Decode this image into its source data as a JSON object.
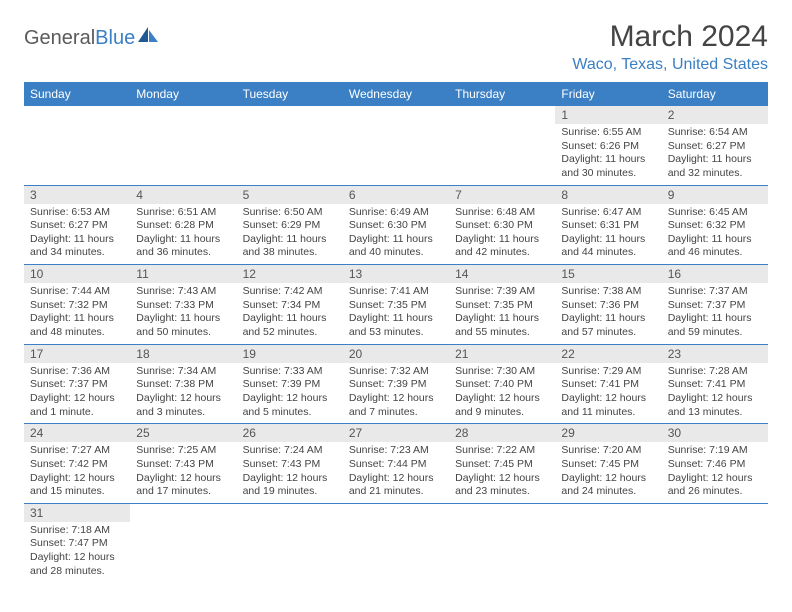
{
  "logo": {
    "text_a": "General",
    "text_b": "Blue"
  },
  "title": "March 2024",
  "location": "Waco, Texas, United States",
  "colors": {
    "header_bg": "#3b7fc4",
    "header_fg": "#ffffff",
    "daynum_bg": "#e9e9e9",
    "text": "#444444",
    "rule": "#3b7fc4"
  },
  "day_headers": [
    "Sunday",
    "Monday",
    "Tuesday",
    "Wednesday",
    "Thursday",
    "Friday",
    "Saturday"
  ],
  "weeks": [
    [
      {
        "n": "",
        "sr": "",
        "ss": "",
        "dl": ""
      },
      {
        "n": "",
        "sr": "",
        "ss": "",
        "dl": ""
      },
      {
        "n": "",
        "sr": "",
        "ss": "",
        "dl": ""
      },
      {
        "n": "",
        "sr": "",
        "ss": "",
        "dl": ""
      },
      {
        "n": "",
        "sr": "",
        "ss": "",
        "dl": ""
      },
      {
        "n": "1",
        "sr": "Sunrise: 6:55 AM",
        "ss": "Sunset: 6:26 PM",
        "dl": "Daylight: 11 hours and 30 minutes."
      },
      {
        "n": "2",
        "sr": "Sunrise: 6:54 AM",
        "ss": "Sunset: 6:27 PM",
        "dl": "Daylight: 11 hours and 32 minutes."
      }
    ],
    [
      {
        "n": "3",
        "sr": "Sunrise: 6:53 AM",
        "ss": "Sunset: 6:27 PM",
        "dl": "Daylight: 11 hours and 34 minutes."
      },
      {
        "n": "4",
        "sr": "Sunrise: 6:51 AM",
        "ss": "Sunset: 6:28 PM",
        "dl": "Daylight: 11 hours and 36 minutes."
      },
      {
        "n": "5",
        "sr": "Sunrise: 6:50 AM",
        "ss": "Sunset: 6:29 PM",
        "dl": "Daylight: 11 hours and 38 minutes."
      },
      {
        "n": "6",
        "sr": "Sunrise: 6:49 AM",
        "ss": "Sunset: 6:30 PM",
        "dl": "Daylight: 11 hours and 40 minutes."
      },
      {
        "n": "7",
        "sr": "Sunrise: 6:48 AM",
        "ss": "Sunset: 6:30 PM",
        "dl": "Daylight: 11 hours and 42 minutes."
      },
      {
        "n": "8",
        "sr": "Sunrise: 6:47 AM",
        "ss": "Sunset: 6:31 PM",
        "dl": "Daylight: 11 hours and 44 minutes."
      },
      {
        "n": "9",
        "sr": "Sunrise: 6:45 AM",
        "ss": "Sunset: 6:32 PM",
        "dl": "Daylight: 11 hours and 46 minutes."
      }
    ],
    [
      {
        "n": "10",
        "sr": "Sunrise: 7:44 AM",
        "ss": "Sunset: 7:32 PM",
        "dl": "Daylight: 11 hours and 48 minutes."
      },
      {
        "n": "11",
        "sr": "Sunrise: 7:43 AM",
        "ss": "Sunset: 7:33 PM",
        "dl": "Daylight: 11 hours and 50 minutes."
      },
      {
        "n": "12",
        "sr": "Sunrise: 7:42 AM",
        "ss": "Sunset: 7:34 PM",
        "dl": "Daylight: 11 hours and 52 minutes."
      },
      {
        "n": "13",
        "sr": "Sunrise: 7:41 AM",
        "ss": "Sunset: 7:35 PM",
        "dl": "Daylight: 11 hours and 53 minutes."
      },
      {
        "n": "14",
        "sr": "Sunrise: 7:39 AM",
        "ss": "Sunset: 7:35 PM",
        "dl": "Daylight: 11 hours and 55 minutes."
      },
      {
        "n": "15",
        "sr": "Sunrise: 7:38 AM",
        "ss": "Sunset: 7:36 PM",
        "dl": "Daylight: 11 hours and 57 minutes."
      },
      {
        "n": "16",
        "sr": "Sunrise: 7:37 AM",
        "ss": "Sunset: 7:37 PM",
        "dl": "Daylight: 11 hours and 59 minutes."
      }
    ],
    [
      {
        "n": "17",
        "sr": "Sunrise: 7:36 AM",
        "ss": "Sunset: 7:37 PM",
        "dl": "Daylight: 12 hours and 1 minute."
      },
      {
        "n": "18",
        "sr": "Sunrise: 7:34 AM",
        "ss": "Sunset: 7:38 PM",
        "dl": "Daylight: 12 hours and 3 minutes."
      },
      {
        "n": "19",
        "sr": "Sunrise: 7:33 AM",
        "ss": "Sunset: 7:39 PM",
        "dl": "Daylight: 12 hours and 5 minutes."
      },
      {
        "n": "20",
        "sr": "Sunrise: 7:32 AM",
        "ss": "Sunset: 7:39 PM",
        "dl": "Daylight: 12 hours and 7 minutes."
      },
      {
        "n": "21",
        "sr": "Sunrise: 7:30 AM",
        "ss": "Sunset: 7:40 PM",
        "dl": "Daylight: 12 hours and 9 minutes."
      },
      {
        "n": "22",
        "sr": "Sunrise: 7:29 AM",
        "ss": "Sunset: 7:41 PM",
        "dl": "Daylight: 12 hours and 11 minutes."
      },
      {
        "n": "23",
        "sr": "Sunrise: 7:28 AM",
        "ss": "Sunset: 7:41 PM",
        "dl": "Daylight: 12 hours and 13 minutes."
      }
    ],
    [
      {
        "n": "24",
        "sr": "Sunrise: 7:27 AM",
        "ss": "Sunset: 7:42 PM",
        "dl": "Daylight: 12 hours and 15 minutes."
      },
      {
        "n": "25",
        "sr": "Sunrise: 7:25 AM",
        "ss": "Sunset: 7:43 PM",
        "dl": "Daylight: 12 hours and 17 minutes."
      },
      {
        "n": "26",
        "sr": "Sunrise: 7:24 AM",
        "ss": "Sunset: 7:43 PM",
        "dl": "Daylight: 12 hours and 19 minutes."
      },
      {
        "n": "27",
        "sr": "Sunrise: 7:23 AM",
        "ss": "Sunset: 7:44 PM",
        "dl": "Daylight: 12 hours and 21 minutes."
      },
      {
        "n": "28",
        "sr": "Sunrise: 7:22 AM",
        "ss": "Sunset: 7:45 PM",
        "dl": "Daylight: 12 hours and 23 minutes."
      },
      {
        "n": "29",
        "sr": "Sunrise: 7:20 AM",
        "ss": "Sunset: 7:45 PM",
        "dl": "Daylight: 12 hours and 24 minutes."
      },
      {
        "n": "30",
        "sr": "Sunrise: 7:19 AM",
        "ss": "Sunset: 7:46 PM",
        "dl": "Daylight: 12 hours and 26 minutes."
      }
    ],
    [
      {
        "n": "31",
        "sr": "Sunrise: 7:18 AM",
        "ss": "Sunset: 7:47 PM",
        "dl": "Daylight: 12 hours and 28 minutes."
      },
      {
        "n": "",
        "sr": "",
        "ss": "",
        "dl": ""
      },
      {
        "n": "",
        "sr": "",
        "ss": "",
        "dl": ""
      },
      {
        "n": "",
        "sr": "",
        "ss": "",
        "dl": ""
      },
      {
        "n": "",
        "sr": "",
        "ss": "",
        "dl": ""
      },
      {
        "n": "",
        "sr": "",
        "ss": "",
        "dl": ""
      },
      {
        "n": "",
        "sr": "",
        "ss": "",
        "dl": ""
      }
    ]
  ]
}
